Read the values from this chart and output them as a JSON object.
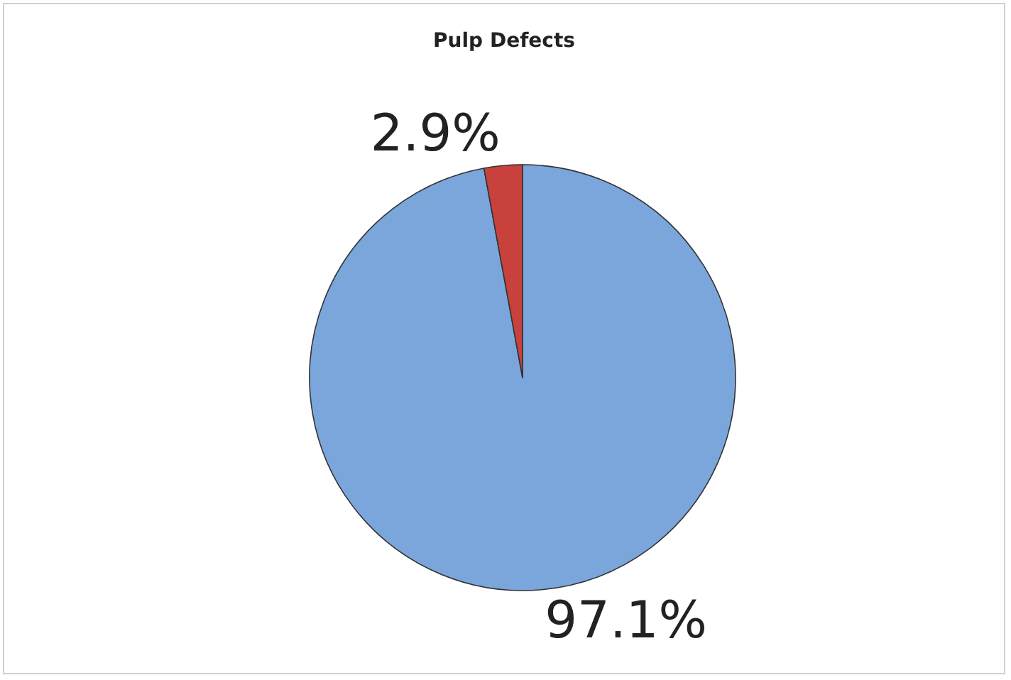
{
  "chart_data": {
    "type": "pie",
    "title": "Pulp Defects",
    "categories": [
      null,
      null
    ],
    "values": [
      97.1,
      2.9
    ],
    "value_labels": [
      "97.1%",
      "2.9%"
    ],
    "colors": [
      "#7ba6db",
      "#c9413d"
    ]
  }
}
